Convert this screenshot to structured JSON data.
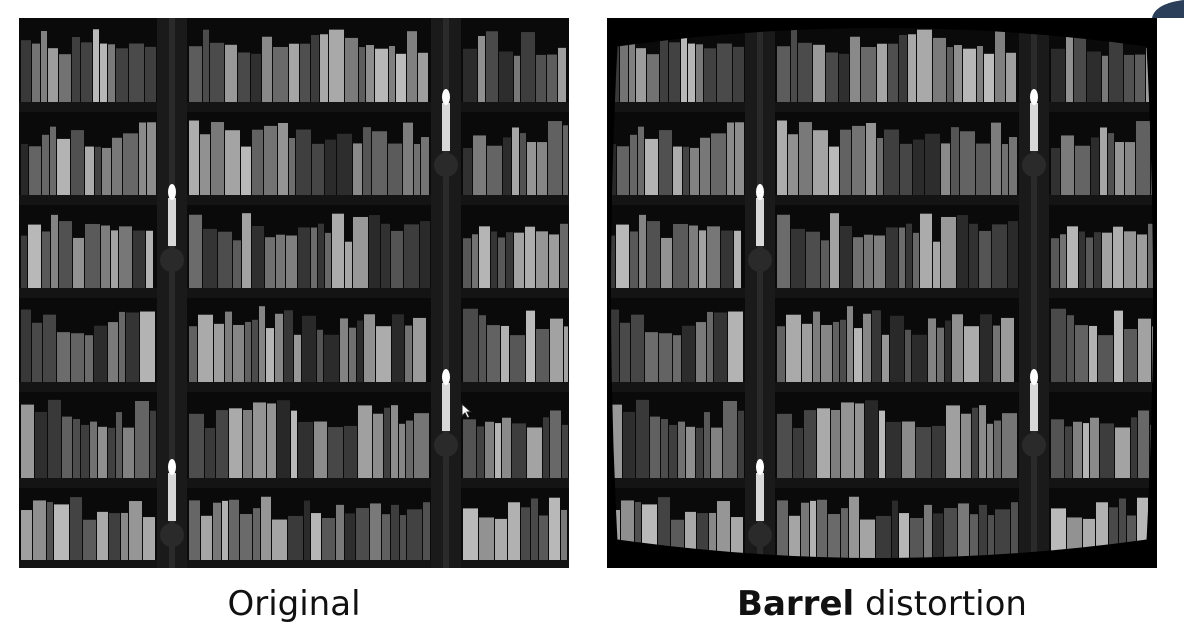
{
  "figures": [
    {
      "id": "original",
      "caption": "Original"
    },
    {
      "id": "barrel",
      "caption_bold": "Barrel",
      "caption_rest": " distortion"
    }
  ],
  "icons": [
    "cursor-arrow-icon",
    "corner-logo-icon"
  ]
}
